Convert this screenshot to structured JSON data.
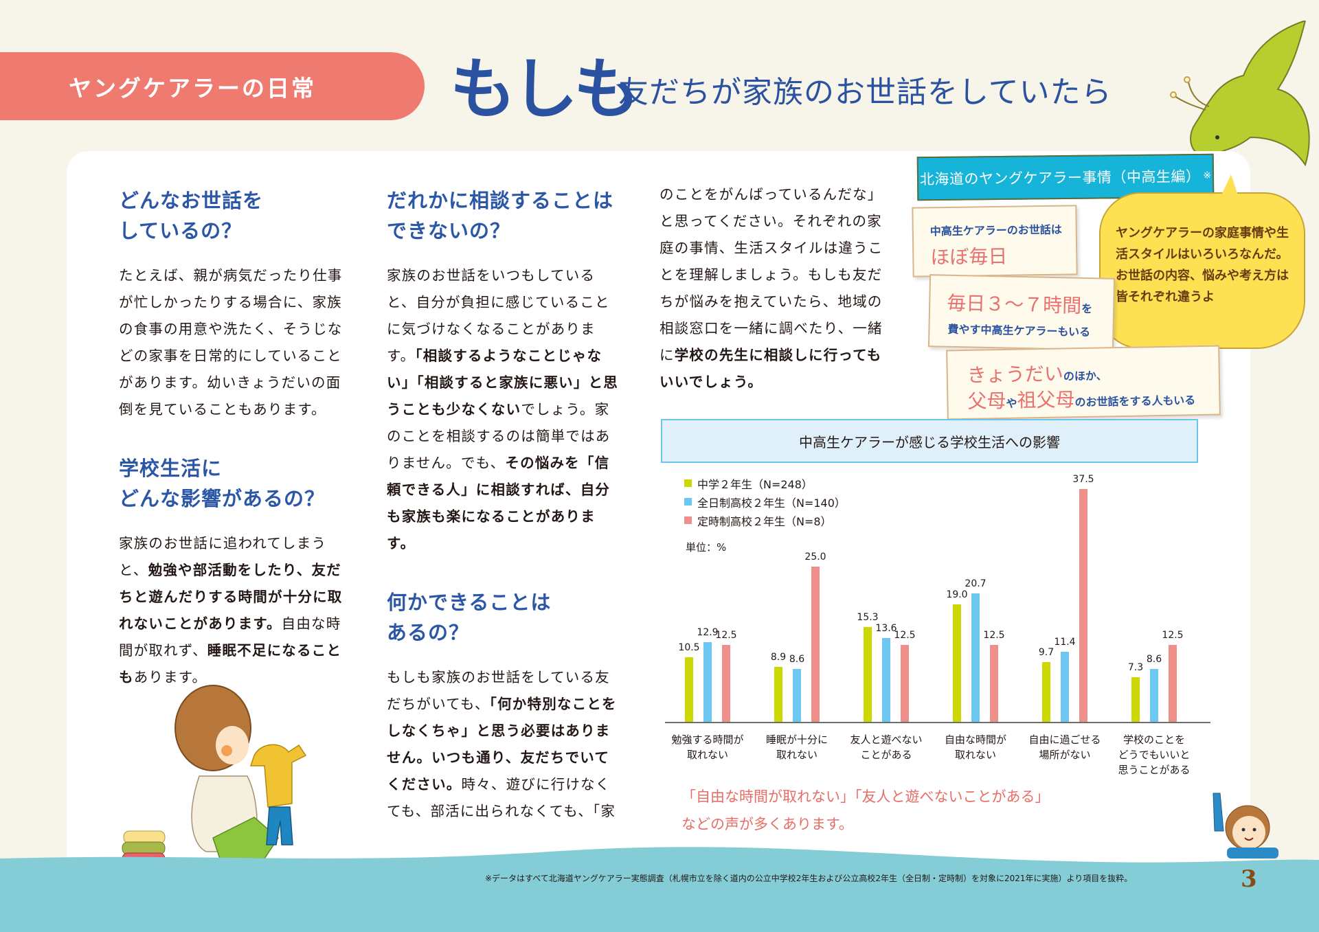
{
  "header": {
    "section_label": "ヤングケアラーの日常",
    "title_emphasis": "もしも",
    "title_rest": "友だちが家族のお世話をしていたら"
  },
  "columns": [
    {
      "heading_line1": "どんなお世話を",
      "heading_line2": "しているの？",
      "body": "たとえば、親が病気だったり仕事が忙しかったりする場合に、家族の食事の用意や洗たく、そうじなどの家事を日常的にしていることがあります。幼いきょうだいの面倒を見ていることもあります。"
    },
    {
      "heading_line1": "学校生活に",
      "heading_line2": "どんな影響があるの？",
      "body_parts": [
        {
          "text": "家族のお世話に追われてしまうと、",
          "bold": false
        },
        {
          "text": "勉強や部活動をしたり、友だちと遊んだりする時間が十分に取れないことがあります。",
          "bold": true
        },
        {
          "text": "自由な時間が取れず、",
          "bold": false
        },
        {
          "text": "睡眠不足になることも",
          "bold": true
        },
        {
          "text": "あります。",
          "bold": false
        }
      ]
    },
    {
      "heading_line1": "だれかに相談することは",
      "heading_line2": "できないの？",
      "body_parts": [
        {
          "text": "家族のお世話をいつもしていると、自分が負担に感じていることに気づけなくなることがあります。",
          "bold": false
        },
        {
          "text": "「相談するようなことじゃない」「相談すると家族に悪い」と思うことも少なくない",
          "bold": true
        },
        {
          "text": "でしょう。家のことを相談するのは簡単ではありません。でも、",
          "bold": false
        },
        {
          "text": "その悩みを「信頼できる人」に相談すれば、自分も家族も楽になることがあります。",
          "bold": true
        }
      ]
    },
    {
      "heading_line1": "何かできることは",
      "heading_line2": "あるの？",
      "body_parts": [
        {
          "text": "もしも家族のお世話をしている友だちがいても、",
          "bold": false
        },
        {
          "text": "「何か特別なことをしなくちゃ」と思う必要はありません。いつも通り、友だちでいてください。",
          "bold": true
        },
        {
          "text": "時々、遊びに行けなくても、部活に出られなくても、「家",
          "bold": false
        }
      ]
    },
    {
      "body_parts": [
        {
          "text": "のことをがんばっているんだな」と思ってください。それぞれの家庭の事情、生活スタイルは違うことを理解しましょう。もしも友だちが悩みを抱えていたら、地域の相談窓口を一緒に調べたり、一緒に",
          "bold": false
        },
        {
          "text": "学校の先生に相談しに行ってもいいでしょう。",
          "bold": true
        }
      ]
    }
  ],
  "infographic": {
    "banner": "北海道のヤングケアラー事情（中高生編）",
    "banner_mark": "※",
    "card1_line1": "中高生ケアラーのお世話は",
    "card1_line2": "ほぼ毎日",
    "card2_big": "毎日３～７時間",
    "card2_small_suffix": "を",
    "card2_line2": "費やす中高生ケアラーもいる",
    "card3_big1": "きょうだい",
    "card3_small1": "のほか、",
    "card3_big2": "父母",
    "card3_small2": "や",
    "card3_big3": "祖父母",
    "card3_small3": "のお世話をする人もいる",
    "bubble": "ヤングケアラーの家庭事情や生活スタイルはいろいろなんだ。\nお世話の内容、悩みや考え方は皆それぞれ違うよ"
  },
  "chart_data": {
    "type": "bar",
    "title": "中高生ケアラーが感じる学校生活への影響",
    "unit_label": "単位：%",
    "xlabel": "",
    "ylabel": "%",
    "ylim": [
      0,
      40
    ],
    "grid": false,
    "legend_position": "top-left",
    "categories": [
      "勉強する時間が\n取れない",
      "睡眠が十分に\n取れない",
      "友人と遊べない\nことがある",
      "自由な時間が\n取れない",
      "自由に過ごせる\n場所がない",
      "学校のことを\nどうでもいいと\n思うことがある"
    ],
    "series": [
      {
        "name": "中学２年生（N=248）",
        "color": "#cdd700",
        "values": [
          10.5,
          8.9,
          15.3,
          19.0,
          9.7,
          7.3
        ]
      },
      {
        "name": "全日制高校２年生（N=140）",
        "color": "#6cc8f0",
        "values": [
          12.9,
          8.6,
          13.6,
          20.7,
          11.4,
          8.6
        ]
      },
      {
        "name": "定時制高校２年生（N=8）",
        "color": "#ef8f89",
        "values": [
          12.5,
          25.0,
          12.5,
          12.5,
          37.5,
          12.5
        ]
      }
    ],
    "annotation": "「自由な時間が取れない」「友人と遊べないことがある」などの声が多くあります。"
  },
  "chart_note_line1": "「自由な時間が取れない」「友人と遊べないことがある」",
  "chart_note_line2": "などの声が多くあります。",
  "footer": {
    "footnote": "※データはすべて北海道ヤングケアラー実態調査（札幌市立を除く道内の公立中学校2年生および公立高校2年生（全日制・定時制）を対象に2021年に実施）より項目を抜粋。",
    "page_number": "3"
  },
  "colors": {
    "background": "#f7f4ea",
    "header_pill": "#ee7a70",
    "title_blue": "#2b52a0",
    "heading_blue": "#2b57a6",
    "banner_cyan": "#16b4d9",
    "bubble_yellow": "#fde153",
    "accent_pink": "#e8706f",
    "footer_teal": "#84cdd6"
  }
}
